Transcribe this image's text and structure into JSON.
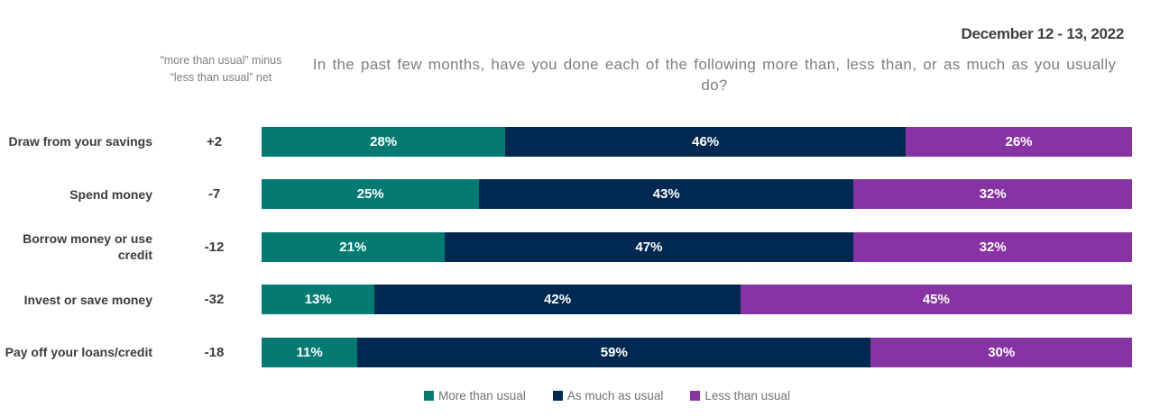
{
  "header": {
    "date": "December 12 - 13, 2022",
    "title": "In the past few months, have you done each of the following more than, less than, or as much as you usually do?",
    "net_header": "“more than usual” minus “less than usual” net"
  },
  "colors": {
    "more_than_usual": "#047A72",
    "as_much_as_usual": "#002952",
    "less_than_usual": "#8733A3",
    "title_text": "#7f7f7f",
    "label_text": "#3c3c3c",
    "bar_value_text": "#ffffff"
  },
  "legend": {
    "position": "bottom",
    "items": [
      {
        "label": "More than usual",
        "color": "#047A72"
      },
      {
        "label": "As much as usual",
        "color": "#002952"
      },
      {
        "label": "Less than usual",
        "color": "#8733A3"
      }
    ]
  },
  "chart_data": {
    "type": "bar",
    "orientation": "horizontal",
    "stacked": true,
    "unit": "%",
    "title": "In the past few months, have you done each of the following more than, less than, or as much as you usually do?",
    "annotation_date": "December 12 - 13, 2022",
    "net_column_header": "“more than usual” minus “less than usual” net",
    "categories": [
      "Draw from your savings",
      "Spend money",
      "Borrow money or use credit",
      "Invest or save money",
      "Pay off your loans/credit"
    ],
    "net_values": [
      "+2",
      "-7",
      "-12",
      "-32",
      "-18"
    ],
    "series": [
      {
        "name": "More than usual",
        "color": "#047A72",
        "values": [
          28,
          25,
          21,
          13,
          11
        ]
      },
      {
        "name": "As much as usual",
        "color": "#002952",
        "values": [
          46,
          43,
          47,
          42,
          59
        ]
      },
      {
        "name": "Less than usual",
        "color": "#8733A3",
        "values": [
          26,
          32,
          32,
          45,
          30
        ]
      }
    ],
    "xlim": [
      0,
      100
    ],
    "grid": false,
    "value_labels": "inside",
    "legend_position": "bottom"
  }
}
